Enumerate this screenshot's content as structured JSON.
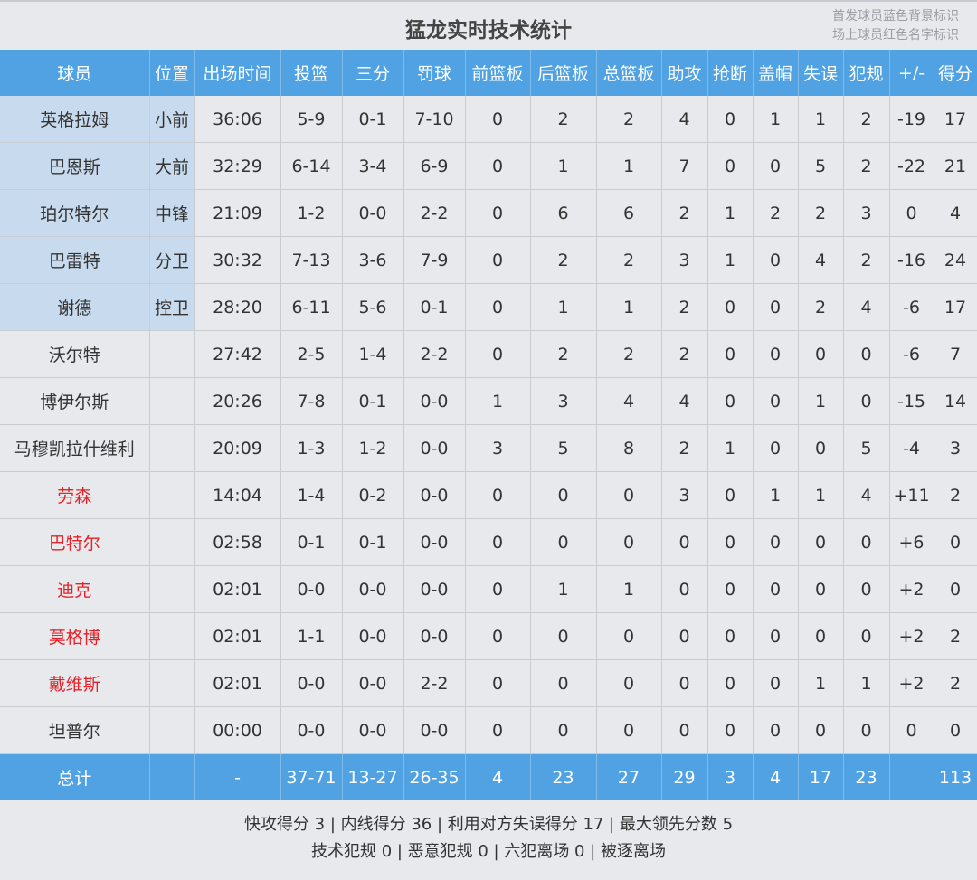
{
  "title": "猛龙实时技术统计",
  "legend": [
    "首发球员蓝色背景标识",
    "场上球员红色名字标识"
  ],
  "colors": {
    "header": "#51a2e3",
    "starter_bg": "#c8dbee",
    "on_court_name": "#e5222a"
  },
  "columns": [
    "球员",
    "位置",
    "出场时间",
    "投篮",
    "三分",
    "罚球",
    "前篮板",
    "后篮板",
    "总篮板",
    "助攻",
    "抢断",
    "盖帽",
    "失误",
    "犯规",
    "+/-",
    "得分"
  ],
  "players": [
    {
      "starter": true,
      "on_court": false,
      "cells": [
        "英格拉姆",
        "小前",
        "36:06",
        "5-9",
        "0-1",
        "7-10",
        "0",
        "2",
        "2",
        "4",
        "0",
        "1",
        "1",
        "2",
        "-19",
        "17"
      ]
    },
    {
      "starter": true,
      "on_court": false,
      "cells": [
        "巴恩斯",
        "大前",
        "32:29",
        "6-14",
        "3-4",
        "6-9",
        "0",
        "1",
        "1",
        "7",
        "0",
        "0",
        "5",
        "2",
        "-22",
        "21"
      ]
    },
    {
      "starter": true,
      "on_court": false,
      "cells": [
        "珀尔特尔",
        "中锋",
        "21:09",
        "1-2",
        "0-0",
        "2-2",
        "0",
        "6",
        "6",
        "2",
        "1",
        "2",
        "2",
        "3",
        "0",
        "4"
      ]
    },
    {
      "starter": true,
      "on_court": false,
      "cells": [
        "巴雷特",
        "分卫",
        "30:32",
        "7-13",
        "3-6",
        "7-9",
        "0",
        "2",
        "2",
        "3",
        "1",
        "0",
        "4",
        "2",
        "-16",
        "24"
      ]
    },
    {
      "starter": true,
      "on_court": false,
      "cells": [
        "谢德",
        "控卫",
        "28:20",
        "6-11",
        "5-6",
        "0-1",
        "0",
        "1",
        "1",
        "2",
        "0",
        "0",
        "2",
        "4",
        "-6",
        "17"
      ]
    },
    {
      "starter": false,
      "on_court": false,
      "cells": [
        "沃尔特",
        "",
        "27:42",
        "2-5",
        "1-4",
        "2-2",
        "0",
        "2",
        "2",
        "2",
        "0",
        "0",
        "0",
        "0",
        "-6",
        "7"
      ]
    },
    {
      "starter": false,
      "on_court": false,
      "cells": [
        "博伊尔斯",
        "",
        "20:26",
        "7-8",
        "0-1",
        "0-0",
        "1",
        "3",
        "4",
        "4",
        "0",
        "0",
        "1",
        "0",
        "-15",
        "14"
      ]
    },
    {
      "starter": false,
      "on_court": false,
      "cells": [
        "马穆凯拉什维利",
        "",
        "20:09",
        "1-3",
        "1-2",
        "0-0",
        "3",
        "5",
        "8",
        "2",
        "1",
        "0",
        "0",
        "5",
        "-4",
        "3"
      ]
    },
    {
      "starter": false,
      "on_court": true,
      "cells": [
        "劳森",
        "",
        "14:04",
        "1-4",
        "0-2",
        "0-0",
        "0",
        "0",
        "0",
        "3",
        "0",
        "1",
        "1",
        "4",
        "+11",
        "2"
      ]
    },
    {
      "starter": false,
      "on_court": true,
      "cells": [
        "巴特尔",
        "",
        "02:58",
        "0-1",
        "0-1",
        "0-0",
        "0",
        "0",
        "0",
        "0",
        "0",
        "0",
        "0",
        "0",
        "+6",
        "0"
      ]
    },
    {
      "starter": false,
      "on_court": true,
      "cells": [
        "迪克",
        "",
        "02:01",
        "0-0",
        "0-0",
        "0-0",
        "0",
        "1",
        "1",
        "0",
        "0",
        "0",
        "0",
        "0",
        "+2",
        "0"
      ]
    },
    {
      "starter": false,
      "on_court": true,
      "cells": [
        "莫格博",
        "",
        "02:01",
        "1-1",
        "0-0",
        "0-0",
        "0",
        "0",
        "0",
        "0",
        "0",
        "0",
        "0",
        "0",
        "+2",
        "2"
      ]
    },
    {
      "starter": false,
      "on_court": true,
      "cells": [
        "戴维斯",
        "",
        "02:01",
        "0-0",
        "0-0",
        "2-2",
        "0",
        "0",
        "0",
        "0",
        "0",
        "0",
        "1",
        "1",
        "+2",
        "2"
      ]
    },
    {
      "starter": false,
      "on_court": false,
      "cells": [
        "坦普尔",
        "",
        "00:00",
        "0-0",
        "0-0",
        "0-0",
        "0",
        "0",
        "0",
        "0",
        "0",
        "0",
        "0",
        "0",
        "0",
        "0"
      ]
    }
  ],
  "totals": [
    "总计",
    "",
    "-",
    "37-71",
    "13-27",
    "26-35",
    "4",
    "23",
    "27",
    "29",
    "3",
    "4",
    "17",
    "23",
    "",
    "113"
  ],
  "footer": [
    "快攻得分 3 | 内线得分 36 | 利用对方失误得分 17 | 最大领先分数 5",
    "技术犯规 0 | 恶意犯规 0 | 六犯离场 0 | 被逐离场"
  ]
}
